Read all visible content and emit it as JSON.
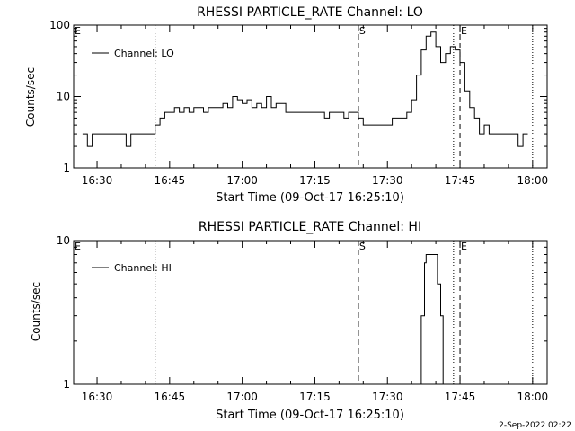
{
  "stamp": "2-Sep-2022 02:22",
  "chart_data": [
    {
      "type": "line",
      "title": "RHESSI PARTICLE_RATE Channel: LO",
      "xlabel": "Start Time (09-Oct-17 16:25:10)",
      "ylabel": "Counts/sec",
      "legend": "Channel: LO",
      "legend_placement": "top-left",
      "yscale": "log",
      "ylim": [
        1,
        100
      ],
      "y_ticks": [
        "1",
        "10",
        "100"
      ],
      "xlim": [
        "16:25:10",
        "18:03:00"
      ],
      "x_ticks": [
        "16:30",
        "16:45",
        "17:00",
        "17:15",
        "17:30",
        "17:45",
        "18:00"
      ],
      "markers": [
        {
          "label": "E",
          "time": "16:25:10",
          "style": "dotted"
        },
        {
          "label": "",
          "time": "16:42:00",
          "style": "dotted"
        },
        {
          "label": "S",
          "time": "17:24:00",
          "style": "dashed"
        },
        {
          "label": "E",
          "time": "17:45:00",
          "style": "dashed"
        },
        {
          "label": "",
          "time": "17:43:40",
          "style": "dotted"
        },
        {
          "label": "",
          "time": "18:00:00",
          "style": "dotted"
        }
      ],
      "series": [
        {
          "x": [
            "16:27",
            "16:28",
            "16:29",
            "16:30",
            "16:31",
            "16:32",
            "16:33",
            "16:34",
            "16:35",
            "16:36",
            "16:37",
            "16:38",
            "16:39",
            "16:40",
            "16:41",
            "16:42",
            "16:43",
            "16:44",
            "16:45",
            "16:46",
            "16:47",
            "16:48",
            "16:49",
            "16:50",
            "16:51",
            "16:52",
            "16:53",
            "16:54",
            "16:55",
            "16:56",
            "16:57",
            "16:58",
            "16:59",
            "17:00",
            "17:01",
            "17:02",
            "17:03",
            "17:04",
            "17:05",
            "17:06",
            "17:07",
            "17:08",
            "17:09",
            "17:10",
            "17:11",
            "17:12",
            "17:13",
            "17:14",
            "17:15",
            "17:16",
            "17:17",
            "17:18",
            "17:19",
            "17:20",
            "17:21",
            "17:22",
            "17:23",
            "17:24",
            "17:25",
            "17:26",
            "17:27",
            "17:28",
            "17:29",
            "17:30",
            "17:31",
            "17:32",
            "17:33",
            "17:34",
            "17:35",
            "17:36",
            "17:37",
            "17:38",
            "17:39",
            "17:40",
            "17:41",
            "17:42",
            "17:43",
            "17:44",
            "17:45",
            "17:46",
            "17:47",
            "17:48",
            "17:49",
            "17:50",
            "17:51",
            "17:52",
            "17:53",
            "17:54",
            "17:55",
            "17:56",
            "17:57",
            "17:58",
            "17:59"
          ],
          "y": [
            3,
            2,
            3,
            3,
            3,
            3,
            3,
            3,
            3,
            2,
            3,
            3,
            3,
            3,
            3,
            4,
            5,
            6,
            6,
            7,
            6,
            7,
            6,
            7,
            7,
            6,
            7,
            7,
            7,
            8,
            7,
            10,
            9,
            8,
            9,
            7,
            8,
            7,
            10,
            7,
            8,
            8,
            6,
            6,
            6,
            6,
            6,
            6,
            6,
            6,
            5,
            6,
            6,
            6,
            5,
            6,
            6,
            5,
            4,
            4,
            4,
            4,
            4,
            4,
            5,
            5,
            5,
            6,
            9,
            20,
            45,
            70,
            80,
            50,
            30,
            40,
            50,
            45,
            30,
            12,
            7,
            5,
            3,
            4,
            3,
            3,
            3,
            3,
            3,
            3,
            2,
            3,
            3
          ]
        }
      ]
    },
    {
      "type": "line",
      "title": "RHESSI PARTICLE_RATE Channel: HI",
      "xlabel": "Start Time (09-Oct-17 16:25:10)",
      "ylabel": "Counts/sec",
      "legend": "Channel: HI",
      "legend_placement": "top-left",
      "yscale": "log",
      "ylim": [
        1,
        10
      ],
      "y_ticks": [
        "1",
        "10"
      ],
      "xlim": [
        "16:25:10",
        "18:03:00"
      ],
      "x_ticks": [
        "16:30",
        "16:45",
        "17:00",
        "17:15",
        "17:30",
        "17:45",
        "18:00"
      ],
      "markers": [
        {
          "label": "E",
          "time": "16:25:10",
          "style": "dotted"
        },
        {
          "label": "",
          "time": "16:42:00",
          "style": "dotted"
        },
        {
          "label": "S",
          "time": "17:24:00",
          "style": "dashed"
        },
        {
          "label": "E",
          "time": "17:45:00",
          "style": "dashed"
        },
        {
          "label": "",
          "time": "17:43:40",
          "style": "dotted"
        },
        {
          "label": "",
          "time": "18:00:00",
          "style": "dotted"
        }
      ],
      "series": [
        {
          "x": [
            "17:36:00",
            "17:37:00",
            "17:37:40",
            "17:38:00",
            "17:39:00",
            "17:39:40",
            "17:40:20",
            "17:41:00",
            "17:41:30"
          ],
          "y": [
            1,
            3,
            7,
            8,
            8,
            8,
            5,
            3,
            1
          ]
        }
      ]
    }
  ]
}
